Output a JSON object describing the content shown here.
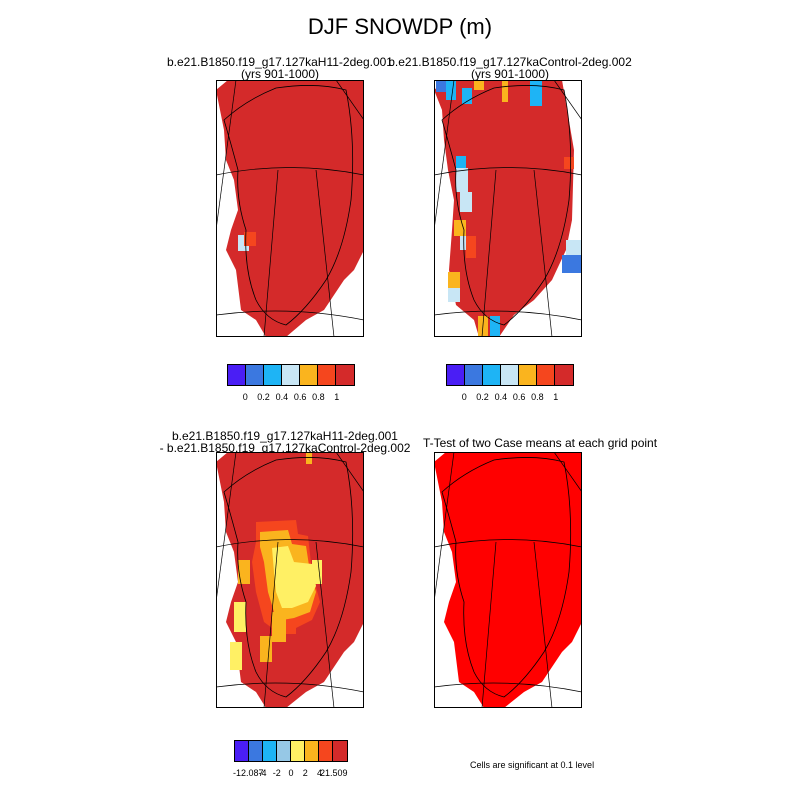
{
  "title": "DJF SNOWDP (m)",
  "panels": [
    {
      "id": "case1",
      "title_line1": "b.e21.B1850.f19_g17.127kaH11-2deg.001",
      "title_line2": "(yrs 901-1000)",
      "fill": "#d42a2a"
    },
    {
      "id": "case2",
      "title_line1": "b.e21.B1850.f19_g17.127kaControl-2deg.002",
      "title_line2": "(yrs 901-1000)",
      "fill": "#d42a2a"
    },
    {
      "id": "diff",
      "title_line1": "b.e21.B1850.f19_g17.127kaH11-2deg.001",
      "title_line2": "- b.e21.B1850.f19_g17.127kaControl-2deg.002",
      "fill": "#d42a2a"
    },
    {
      "id": "ttest",
      "title_line1": "T-Test of two Case means at each grid point",
      "title_line2": "",
      "fill": "#ff0000"
    }
  ],
  "colorbar_abs": {
    "colors": [
      "#4a1ef5",
      "#3b78e0",
      "#1eb4f5",
      "#c8e6f5",
      "#fab41e",
      "#f5461e",
      "#d42a2a"
    ],
    "ticks": [
      "0",
      "0.2",
      "0.4",
      "0.6",
      "0.8",
      "1"
    ]
  },
  "colorbar_diff": {
    "colors": [
      "#4a1ef5",
      "#3b78e0",
      "#1eb4f5",
      "#96c8e6",
      "#fff064",
      "#fab41e",
      "#f5461e",
      "#d42a2a"
    ],
    "ticks": [
      "-12.087",
      "-4",
      "-2",
      "0",
      "2",
      "4",
      "21.509"
    ]
  },
  "significance_note": "Cells are significant at 0.1 level",
  "chart_data": [
    {
      "type": "heatmap",
      "title": "b.e21.B1850.f19_g17.127kaH11-2deg.001 (yrs 901-1000)",
      "levels": [
        0,
        0.2,
        0.4,
        0.6,
        0.8,
        1
      ],
      "dominant_value": "> 1"
    },
    {
      "type": "heatmap",
      "title": "b.e21.B1850.f19_g17.127kaControl-2deg.002 (yrs 901-1000)",
      "levels": [
        0,
        0.2,
        0.4,
        0.6,
        0.8,
        1
      ],
      "dominant_value": "> 1"
    },
    {
      "type": "heatmap",
      "title": "b.e21.B1850.f19_g17.127kaH11-2deg.001 - b.e21.B1850.f19_g17.127kaControl-2deg.002",
      "levels": [
        -12.087,
        -4,
        -2,
        0,
        2,
        4,
        21.509
      ]
    },
    {
      "type": "heatmap",
      "title": "T-Test of two Case means at each grid point",
      "note": "Cells are significant at 0.1 level"
    }
  ]
}
